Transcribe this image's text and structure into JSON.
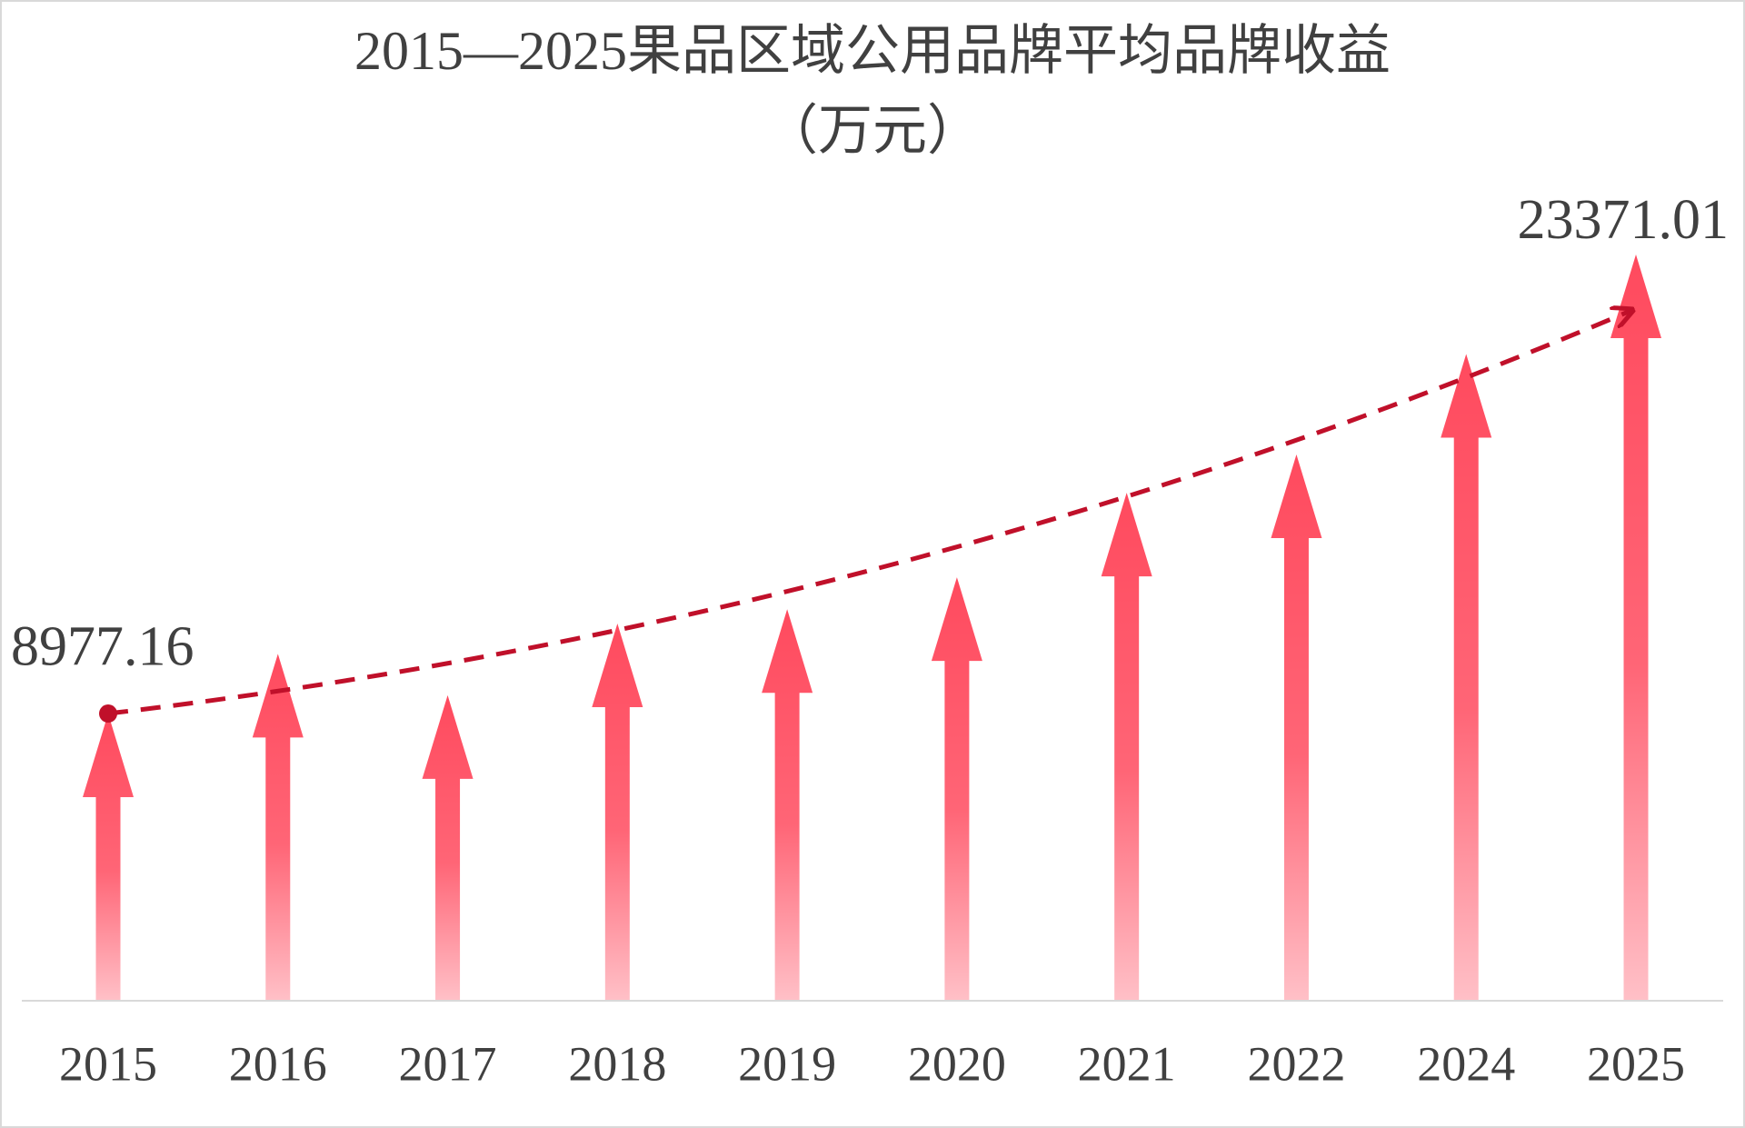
{
  "chart_data": {
    "type": "arrow-bar",
    "title": "2015—2025果品区域公用品牌平均品牌收益",
    "subtitle": "（万元）",
    "categories": [
      "2015",
      "2016",
      "2017",
      "2018",
      "2019",
      "2020",
      "2021",
      "2022",
      "2024",
      "2025"
    ],
    "values": [
      8977.16,
      10850,
      9550,
      11800,
      12250,
      13250,
      15900,
      17100,
      20250,
      23371.01
    ],
    "value_labels": [
      "8977.16",
      null,
      null,
      null,
      null,
      null,
      null,
      null,
      null,
      "23371.01"
    ],
    "color": "#ff4a5e",
    "trend_color": "#c0102a"
  }
}
